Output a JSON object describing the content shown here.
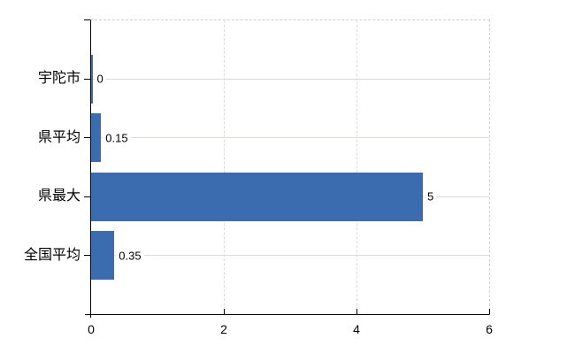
{
  "chart_data": {
    "type": "bar",
    "orientation": "horizontal",
    "title": "",
    "categories": [
      "宇陀市",
      "県平均",
      "県最大",
      "全国平均"
    ],
    "values": [
      0,
      0.15,
      5,
      0.35
    ],
    "value_labels": [
      "0",
      "0.15",
      "5",
      "0.35"
    ],
    "xlim": [
      0,
      6
    ],
    "x_ticks": [
      0,
      2,
      4,
      6
    ],
    "x_tick_labels": [
      "0",
      "2",
      "4",
      "6"
    ],
    "grid": "horizontal solid line at each category row, dashed vertical lines at inner x ticks",
    "legend": "none",
    "colors": {
      "bar": "#3b6cb0",
      "grid": "#d6ded6",
      "dashed_border": "#d2cdd2",
      "axis": "#000000",
      "text": "#000000",
      "background": "#ffffff"
    }
  }
}
